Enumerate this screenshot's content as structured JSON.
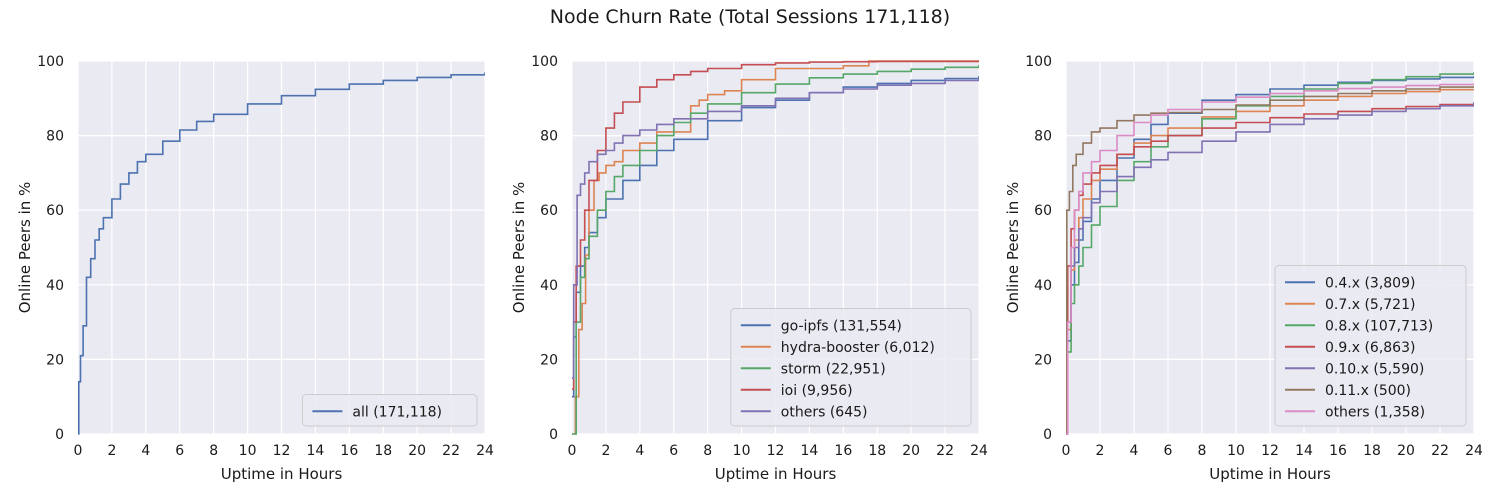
{
  "figure": {
    "title": "Node Churn Rate (Total Sessions 171,118)"
  },
  "colors": {
    "background": "#eaeaf2",
    "grid": "#ffffff",
    "blue": "#4c72b0",
    "orange": "#dd8452",
    "green": "#55a868",
    "red": "#c44e52",
    "purple": "#8172b3",
    "brown": "#937860",
    "pink": "#da8bc3"
  },
  "chart_data": [
    {
      "type": "line",
      "title": "",
      "xlabel": "Uptime in Hours",
      "ylabel": "Online Peers in %",
      "xlim": [
        0,
        24
      ],
      "ylim": [
        0,
        100
      ],
      "xticks": [
        0,
        2,
        4,
        6,
        8,
        10,
        12,
        14,
        16,
        18,
        20,
        22,
        24
      ],
      "yticks": [
        0,
        20,
        40,
        60,
        80,
        100
      ],
      "grid": true,
      "legend_position": "lower-right",
      "series": [
        {
          "name": "all (171,118)",
          "color": "#4c72b0",
          "x": [
            0,
            0.05,
            0.15,
            0.3,
            0.5,
            0.75,
            1,
            1.25,
            1.5,
            2,
            2.5,
            3,
            3.5,
            4,
            5,
            6,
            7,
            8,
            10,
            12,
            14,
            16,
            18,
            20,
            22,
            24
          ],
          "y": [
            0,
            14,
            21,
            29,
            42,
            47,
            52,
            55,
            58,
            63,
            67,
            70,
            73,
            75,
            78.5,
            81.5,
            83.8,
            85.7,
            88.5,
            90.7,
            92.4,
            93.8,
            94.8,
            95.6,
            96.3,
            97
          ]
        }
      ]
    },
    {
      "type": "line",
      "title": "",
      "xlabel": "Uptime in Hours",
      "ylabel": "Online Peers in %",
      "xlim": [
        0,
        24
      ],
      "ylim": [
        0,
        100
      ],
      "xticks": [
        0,
        2,
        4,
        6,
        8,
        10,
        12,
        14,
        16,
        18,
        20,
        22,
        24
      ],
      "yticks": [
        0,
        20,
        40,
        60,
        80,
        100
      ],
      "grid": true,
      "legend_position": "lower-right",
      "series": [
        {
          "name": "go-ipfs (131,554)",
          "color": "#4c72b0",
          "x": [
            0,
            0.1,
            0.25,
            0.5,
            0.75,
            1,
            1.5,
            2,
            3,
            4,
            5,
            6,
            8,
            10,
            12,
            14,
            16,
            18,
            20,
            22,
            24
          ],
          "y": [
            10,
            26,
            38,
            45,
            50,
            54,
            58,
            63,
            68,
            72,
            76,
            79,
            84,
            87.5,
            89.5,
            91.5,
            93,
            94,
            94.8,
            95.3,
            96
          ]
        },
        {
          "name": "hydra-booster (6,012)",
          "color": "#dd8452",
          "x": [
            0,
            0.2,
            0.4,
            0.6,
            0.8,
            1,
            1.3,
            1.6,
            2,
            2.5,
            3,
            3.5,
            4,
            5,
            6,
            7,
            7.5,
            8,
            9,
            10,
            12,
            14,
            16,
            17.5,
            20,
            24
          ],
          "y": [
            0,
            10,
            28,
            35,
            48,
            60,
            68,
            70,
            72,
            73,
            76,
            76,
            78,
            81,
            81,
            88,
            89.5,
            91,
            92,
            95,
            98,
            98,
            98.7,
            100,
            100,
            100
          ]
        },
        {
          "name": "storm (22,951)",
          "color": "#55a868",
          "x": [
            0,
            0.25,
            0.5,
            0.75,
            1,
            1.5,
            2,
            2.5,
            3,
            4,
            5,
            6,
            7,
            8,
            10,
            12,
            14,
            16,
            18,
            20,
            22,
            24
          ],
          "y": [
            0,
            30,
            42,
            47,
            53,
            60,
            65,
            69,
            72,
            76,
            80,
            83.5,
            86,
            88.5,
            91.5,
            93.8,
            95.5,
            96.5,
            97.2,
            97.8,
            98.3,
            99
          ]
        },
        {
          "name": "ioi (9,956)",
          "color": "#c44e52",
          "x": [
            0,
            0.1,
            0.25,
            0.5,
            0.75,
            1,
            1.5,
            2,
            2.5,
            3,
            4,
            5,
            6,
            7,
            8,
            10,
            12,
            14,
            16,
            18,
            20,
            24
          ],
          "y": [
            12,
            30,
            45,
            52,
            60,
            68,
            76,
            82,
            86,
            89,
            93,
            95,
            96.3,
            97.2,
            98,
            99,
            99.5,
            99.7,
            99.8,
            99.9,
            99.9,
            100
          ]
        },
        {
          "name": "others (645)",
          "color": "#8172b3",
          "x": [
            0,
            0.1,
            0.3,
            0.5,
            0.75,
            1,
            1.5,
            2,
            2.5,
            3,
            4,
            5,
            6,
            8,
            10,
            12,
            14,
            16,
            18,
            20,
            22,
            24
          ],
          "y": [
            15,
            40,
            64,
            67,
            70,
            73,
            75,
            76,
            78,
            80,
            81.5,
            83,
            84.5,
            86.5,
            88,
            90,
            91.5,
            92.5,
            93.5,
            94,
            94.8,
            95.5
          ]
        }
      ]
    },
    {
      "type": "line",
      "title": "",
      "xlabel": "Uptime in Hours",
      "ylabel": "Online Peers in %",
      "xlim": [
        0,
        24
      ],
      "ylim": [
        0,
        100
      ],
      "xticks": [
        0,
        2,
        4,
        6,
        8,
        10,
        12,
        14,
        16,
        18,
        20,
        22,
        24
      ],
      "yticks": [
        0,
        20,
        40,
        60,
        80,
        100
      ],
      "grid": true,
      "legend_position": "lower-right",
      "series": [
        {
          "name": "0.4.x (3,809)",
          "color": "#4c72b0",
          "x": [
            0,
            0.1,
            0.3,
            0.5,
            0.75,
            1,
            1.5,
            2,
            3,
            4,
            5,
            6,
            8,
            10,
            12,
            14,
            16,
            18,
            20,
            22,
            24
          ],
          "y": [
            0,
            25,
            40,
            46,
            52,
            57,
            63,
            68,
            74,
            79,
            83,
            86,
            89.5,
            91,
            92.5,
            93.5,
            94.3,
            94.8,
            95.2,
            95.6,
            96
          ]
        },
        {
          "name": "0.7.x (5,721)",
          "color": "#dd8452",
          "x": [
            0,
            0.1,
            0.3,
            0.5,
            0.75,
            1,
            1.5,
            2,
            3,
            4,
            5,
            6,
            8,
            10,
            12,
            14,
            16,
            18,
            20,
            22,
            24
          ],
          "y": [
            0,
            28,
            44,
            52,
            58,
            63,
            68,
            71,
            75,
            78,
            80,
            82,
            85,
            86.5,
            88,
            89.5,
            90.5,
            91.3,
            91.8,
            92.3,
            92.5
          ]
        },
        {
          "name": "0.8.x (107,713)",
          "color": "#55a868",
          "x": [
            0,
            0.1,
            0.3,
            0.5,
            0.75,
            1,
            1.5,
            2,
            3,
            4,
            5,
            6,
            8,
            10,
            12,
            14,
            16,
            18,
            20,
            22,
            24
          ],
          "y": [
            0,
            22,
            35,
            40,
            45,
            50,
            56,
            61,
            68,
            73,
            77,
            80,
            84.5,
            88,
            90.5,
            92.5,
            94,
            95,
            95.8,
            96.5,
            97
          ]
        },
        {
          "name": "0.9.x (6,863)",
          "color": "#c44e52",
          "x": [
            0,
            0.1,
            0.3,
            0.5,
            0.75,
            1,
            1.5,
            2,
            3,
            4,
            5,
            6,
            8,
            10,
            12,
            14,
            16,
            18,
            20,
            22,
            24
          ],
          "y": [
            0,
            45,
            55,
            60,
            64,
            67,
            70,
            72,
            75,
            77,
            78.5,
            80,
            82,
            83.5,
            84.8,
            85.8,
            86.5,
            87.2,
            87.8,
            88.3,
            88.8
          ]
        },
        {
          "name": "0.10.x (5,590)",
          "color": "#8172b3",
          "x": [
            0,
            0.1,
            0.3,
            0.5,
            0.75,
            1,
            1.5,
            2,
            3,
            4,
            5,
            6,
            8,
            10,
            12,
            14,
            16,
            18,
            20,
            22,
            24
          ],
          "y": [
            0,
            30,
            45,
            50,
            55,
            58,
            62,
            65,
            69,
            71.5,
            73.5,
            75.5,
            78.5,
            81,
            83,
            84.5,
            85.5,
            86.5,
            87.2,
            88,
            89
          ]
        },
        {
          "name": "0.11.x (500)",
          "color": "#937860",
          "x": [
            0,
            0.05,
            0.2,
            0.4,
            0.6,
            1,
            1.5,
            2,
            3,
            4,
            5,
            6,
            8,
            10,
            12,
            14,
            16,
            18,
            20,
            22,
            24
          ],
          "y": [
            0,
            60,
            65,
            72,
            75,
            78,
            81,
            82,
            84,
            85.5,
            86,
            86.2,
            87,
            88.2,
            89.5,
            90.5,
            91.3,
            92,
            92.5,
            93,
            93.2
          ]
        },
        {
          "name": "others (1,358)",
          "color": "#da8bc3",
          "x": [
            0,
            0.1,
            0.3,
            0.5,
            0.75,
            1,
            1.5,
            2,
            3,
            4,
            5,
            6,
            8,
            10,
            12,
            14,
            16,
            18,
            20,
            22,
            24
          ],
          "y": [
            0,
            30,
            50,
            60,
            65,
            70,
            73,
            76,
            80,
            83.5,
            85.5,
            87,
            89,
            90.3,
            91.3,
            92,
            92.6,
            93,
            93.4,
            93.7,
            94
          ]
        }
      ]
    }
  ]
}
